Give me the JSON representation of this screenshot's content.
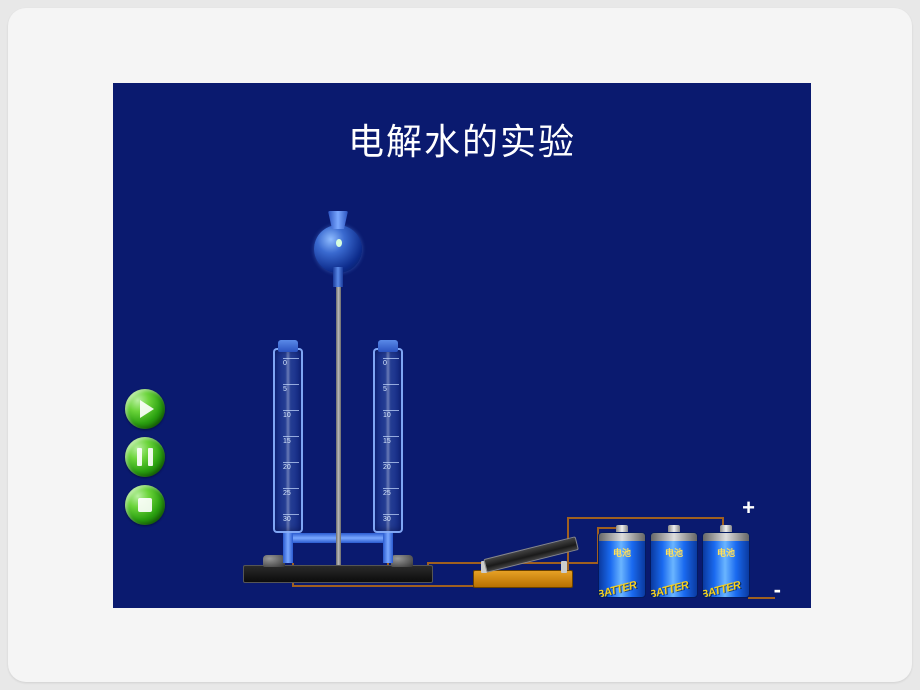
{
  "title": "电解水的实验",
  "colors": {
    "slide_bg": "#0a1a6f",
    "frame_bg": "#f5f5f5",
    "page_bg": "#e8e8e8",
    "tube_border": "#8cb4ff",
    "wire": "#a06020",
    "battery_body": "#1a6af0",
    "battery_label": "#f5d020",
    "switch_base": "#e6a025",
    "button_green": "#2aa010"
  },
  "controls": {
    "play": "play",
    "pause": "pause",
    "stop": "stop"
  },
  "tubes": {
    "graduations": [
      "0",
      "5",
      "10",
      "15",
      "20",
      "25",
      "30"
    ]
  },
  "battery": {
    "count": 3,
    "label_cn": "电池",
    "label_en": "BATTER"
  },
  "terminals": {
    "positive": "+",
    "negative": "-"
  }
}
